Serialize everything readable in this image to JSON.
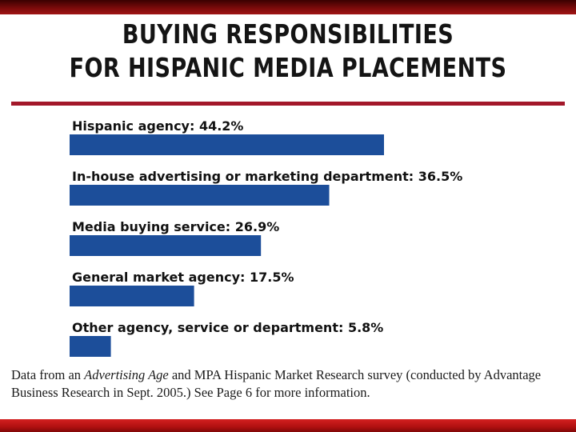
{
  "title_line1": "BUYING RESPONSIBILITIES",
  "title_line2": "FOR HISPANIC MEDIA PLACEMENTS",
  "note": {
    "part1": "Data from an ",
    "source1": "Advertising Age",
    "part2": " and MPA Hispanic Market Research survey (conducted by Advantage Business Research in Sept. 2005.) See Page 6 for more information."
  },
  "colors": {
    "bar": "#1c4e9a",
    "rule": "#a3182a",
    "band_top": "#7a0a0a",
    "band_bottom": "#c81818"
  },
  "chart_data": {
    "type": "bar",
    "orientation": "horizontal",
    "title": "BUYING RESPONSIBILITIES FOR HISPANIC MEDIA PLACEMENTS",
    "categories": [
      "Hispanic agency",
      "In-house advertising or marketing department",
      "Media buying service",
      "General market agency",
      "Other agency, service or department"
    ],
    "values": [
      44.2,
      36.5,
      26.9,
      17.5,
      5.8
    ],
    "value_labels": [
      "44.2%",
      "36.5%",
      "26.9%",
      "17.5%",
      "5.8%"
    ],
    "unit": "%",
    "xlim": [
      0,
      44.2
    ],
    "grid": false,
    "legend": "none"
  }
}
